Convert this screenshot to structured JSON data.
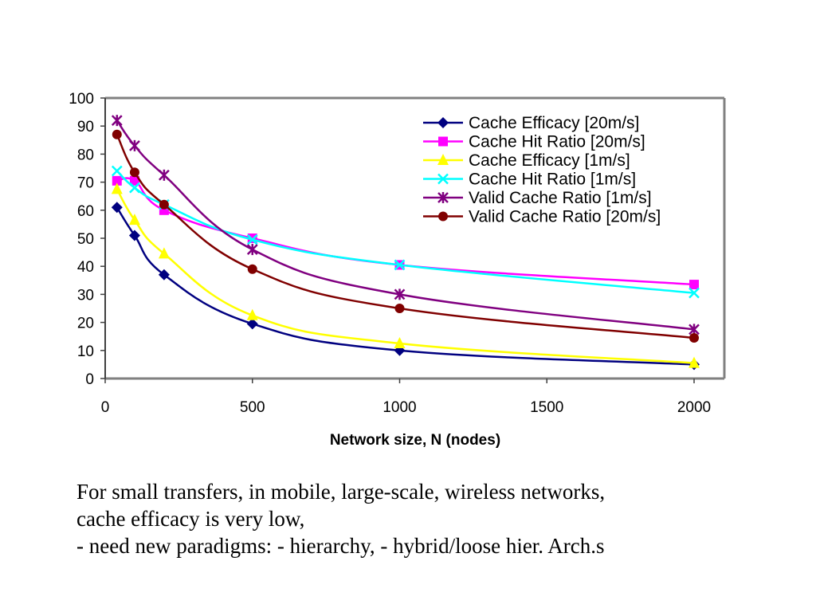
{
  "chart_data": {
    "type": "line",
    "title": "",
    "xlabel": "Network size, N (nodes)",
    "ylabel": "",
    "xlim": [
      0,
      2100
    ],
    "ylim": [
      0,
      100
    ],
    "xticks": [
      0,
      500,
      1000,
      1500,
      2000
    ],
    "yticks": [
      0,
      10,
      20,
      30,
      40,
      50,
      60,
      70,
      80,
      90,
      100
    ],
    "grid": false,
    "legend_position": "top-right",
    "x": [
      40,
      100,
      200,
      500,
      1000,
      2000
    ],
    "series": [
      {
        "name": "Cache Efficacy [20m/s]",
        "color": "#000080",
        "marker": "diamond",
        "values": [
          61,
          51,
          37,
          19.5,
          10,
          5
        ]
      },
      {
        "name": "Cache Hit Ratio [20m/s]",
        "color": "#FF00FF",
        "marker": "square",
        "values": [
          70.5,
          70.5,
          60,
          50,
          40.5,
          33.5
        ]
      },
      {
        "name": "Cache Efficacy [1m/s]",
        "color": "#FFFF00",
        "marker": "triangle",
        "values": [
          67.5,
          56.5,
          44.5,
          22.5,
          12.5,
          5.5
        ]
      },
      {
        "name": "Cache Hit Ratio [1m/s]",
        "color": "#00FFFF",
        "marker": "x",
        "values": [
          74,
          68,
          62,
          49.5,
          40.5,
          30.5
        ]
      },
      {
        "name": "Valid Cache Ratio [1m/s]",
        "color": "#800080",
        "marker": "star",
        "values": [
          92,
          83,
          72.5,
          46,
          30,
          17.5
        ]
      },
      {
        "name": "Valid Cache Ratio [20m/s]",
        "color": "#800000",
        "marker": "circle",
        "values": [
          87,
          73.5,
          62,
          39,
          25,
          14.5
        ]
      }
    ]
  },
  "caption": {
    "lines": [
      "For small transfers, in mobile, large-scale, wireless networks,",
      "cache efficacy is very low,",
      "- need new paradigms: - hierarchy, - hybrid/loose hier. Arch.s"
    ]
  }
}
